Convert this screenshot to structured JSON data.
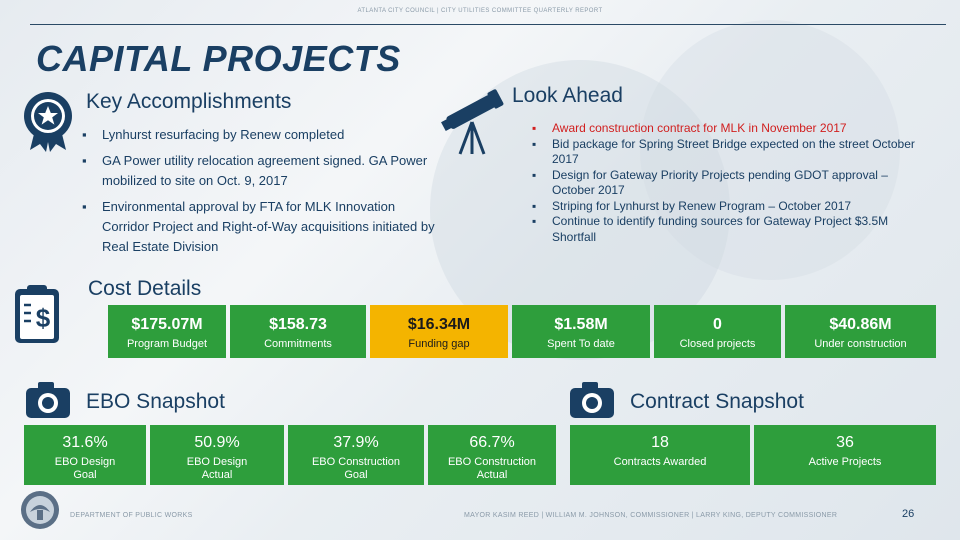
{
  "header": {
    "text": "ATLANTA CITY COUNCIL | CITY UTILITIES COMMITTEE QUARTERLY REPORT"
  },
  "title": "CAPITAL PROJECTS",
  "key_accomplishments": {
    "heading": "Key Accomplishments",
    "items": [
      "Lynhurst resurfacing by Renew completed",
      "GA Power utility relocation agreement signed. GA Power mobilized to site on Oct. 9, 2017",
      "Environmental approval by FTA for MLK Innovation Corridor Project and Right-of-Way acquisitions initiated by Real Estate Division"
    ]
  },
  "look_ahead": {
    "heading": "Look Ahead",
    "items": [
      "Award construction contract for MLK in November 2017",
      "Bid package for Spring Street Bridge expected on the street October 2017",
      "Design for Gateway Priority Projects pending GDOT  approval – October 2017",
      "Striping for Lynhurst by Renew Program – October 2017",
      "Continue to identify funding sources for Gateway Project $3.5M Shortfall"
    ]
  },
  "cost_details": {
    "heading": "Cost Details",
    "items": [
      {
        "value": "$175.07M",
        "label": "Program Budget"
      },
      {
        "value": "$158.73",
        "label": "Commitments"
      },
      {
        "value": "$16.34M",
        "label": "Funding gap"
      },
      {
        "value": "$1.58M",
        "label": "Spent To date"
      },
      {
        "value": "0",
        "label": "Closed projects"
      },
      {
        "value": "$40.86M",
        "label": "Under construction"
      }
    ]
  },
  "ebo_snapshot": {
    "heading": "EBO Snapshot",
    "items": [
      {
        "value": "31.6%",
        "label": "EBO Design Goal"
      },
      {
        "value": "50.9%",
        "label": "EBO Design Actual"
      },
      {
        "value": "37.9%",
        "label": "EBO Construction Goal"
      },
      {
        "value": "66.7%",
        "label": "EBO Construction Actual"
      }
    ]
  },
  "contract_snapshot": {
    "heading": "Contract Snapshot",
    "items": [
      {
        "value": "18",
        "label": "Contracts Awarded"
      },
      {
        "value": "36",
        "label": "Active Projects"
      }
    ]
  },
  "footer": {
    "department": "DEPARTMENT OF PUBLIC WORKS",
    "officials": "MAYOR KASIM REED | WILLIAM M. JOHNSON, COMMISSIONER | LARRY KING, DEPUTY COMMISSIONER",
    "page": "26"
  },
  "colors": {
    "accent_green": "#2e9e3c",
    "gap_yellow": "#f4b400",
    "navy": "#1a3f63",
    "red": "#d11f1f"
  }
}
